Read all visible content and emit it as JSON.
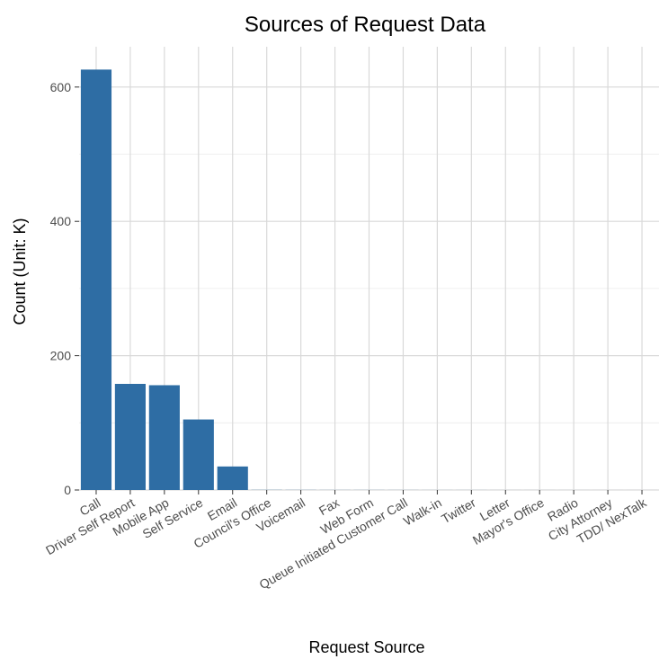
{
  "chart_data": {
    "type": "bar",
    "title": "Sources of Request Data",
    "xlabel": "Request Source",
    "ylabel": "Count (Unit: K)",
    "categories": [
      "Call",
      "Driver Self Report",
      "Mobile App",
      "Self Service",
      "Email",
      "Council's Office",
      "Voicemail",
      "Fax",
      "Web Form",
      "Queue Initiated Customer Call",
      "Walk-in",
      "Twitter",
      "Letter",
      "Mayor's Office",
      "Radio",
      "City Attorney",
      "TDD/ NexTalk"
    ],
    "values": [
      626,
      158,
      156,
      105,
      35,
      0.2,
      0.15,
      0.1,
      0.1,
      0.08,
      0.05,
      0.05,
      0.03,
      0.03,
      0.02,
      0.01,
      0.01
    ],
    "ylim": [
      0,
      660
    ],
    "yticks": [
      0,
      200,
      400,
      600
    ],
    "grid": true,
    "bar_color": "#2e6da4"
  }
}
